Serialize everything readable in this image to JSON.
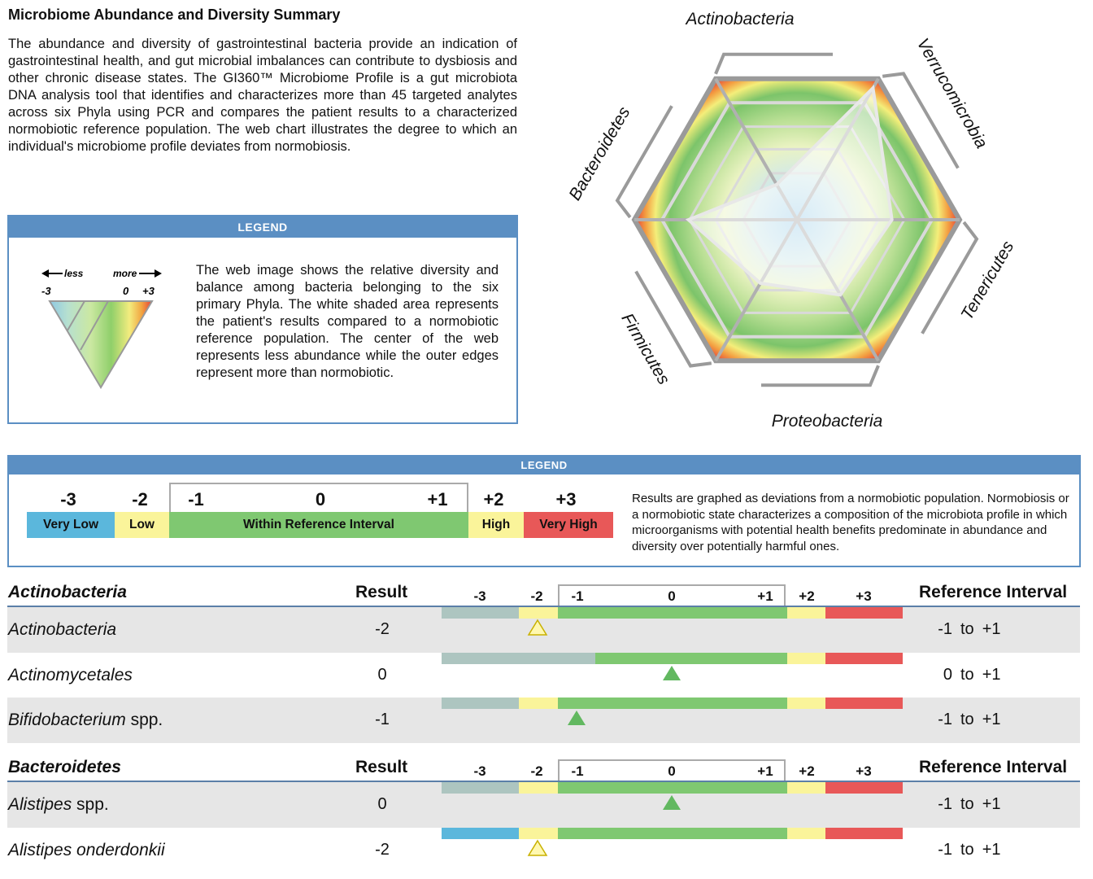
{
  "title": "Microbiome Abundance and Diversity Summary",
  "intro": "The abundance and diversity of gastrointestinal bacteria provide an indication of gastrointestinal health, and gut microbial imbalances can contribute to dysbiosis and other chronic disease states. The GI360™ Microbiome Profile is a gut microbiota DNA analysis tool that identifies and characterizes more than 45 targeted analytes across six Phyla using PCR and compares the patient results to a characterized normobiotic reference population. The web chart illustrates the degree to which an individual's microbiome profile deviates from normobiosis.",
  "legend1": {
    "header": "LEGEND",
    "less": "less",
    "more": "more",
    "min": "-3",
    "mid": "0",
    "max": "+3",
    "text": "The web image shows the relative diversity and balance among bacteria belonging to the six primary Phyla. The white shaded area represents the patient's results compared to a normobiotic reference population. The center of the web represents less abundance while the outer edges represent more than normobiotic."
  },
  "web": {
    "axes": [
      "Actinobacteria",
      "Verrucomicrobia",
      "Tenericutes",
      "Proteobacteria",
      "Firmicutes",
      "Bacteroidetes"
    ],
    "patient_values": [
      -1.5,
      2.6,
      0.5,
      0.2,
      -0.3,
      1.0
    ]
  },
  "legend2": {
    "header": "LEGEND",
    "numbers": [
      "-3",
      "-2",
      "-1",
      "0",
      "+1",
      "+2",
      "+3"
    ],
    "categories": [
      {
        "label": "Very Low",
        "color": "#5bb7dc"
      },
      {
        "label": "Low",
        "color": "#faf49a"
      },
      {
        "label": "Within Reference Interval",
        "color": "#7fc871"
      },
      {
        "label": "High",
        "color": "#faf49a"
      },
      {
        "label": "Very High",
        "color": "#e85858"
      }
    ],
    "text": "Results are graphed as deviations from a normobiotic population. Normobiosis or a normobiotic state characterizes a composition of the microbiota profile in which microorganisms with potential health benefits predominate in abundance and diversity over potentially harmful ones."
  },
  "columns": {
    "result": "Result",
    "reference": "Reference Interval",
    "ticks": [
      "-3",
      "-2",
      "-1",
      "0",
      "+1",
      "+2",
      "+3"
    ],
    "to": "to"
  },
  "sections": [
    {
      "title": "Actinobacteria",
      "rows": [
        {
          "name": "Actinobacteria",
          "suffix": "",
          "result": "-2",
          "value": -2,
          "ref_low": "-1",
          "ref_high": "+1",
          "very_low_color": "#adc5c0",
          "marker": "outline"
        },
        {
          "name": "Actinomycetales",
          "suffix": "",
          "result": "0",
          "value": 0,
          "ref_low": "0",
          "ref_high": "+1",
          "very_low_color": "#adc5c0",
          "marker": "filled"
        },
        {
          "name": "Bifidobacterium",
          "suffix": " spp.",
          "result": "-1",
          "value": -1,
          "ref_low": "-1",
          "ref_high": "+1",
          "very_low_color": "#adc5c0",
          "marker": "filled"
        }
      ]
    },
    {
      "title": "Bacteroidetes",
      "rows": [
        {
          "name": "Alistipes",
          "suffix": " spp.",
          "result": "0",
          "value": 0,
          "ref_low": "-1",
          "ref_high": "+1",
          "very_low_color": "#adc5c0",
          "marker": "filled"
        },
        {
          "name": "Alistipes onderdonkii",
          "suffix": "",
          "result": "-2",
          "value": -2,
          "ref_low": "-1",
          "ref_high": "+1",
          "very_low_color": "#5bb7dc",
          "marker": "outline"
        }
      ]
    }
  ]
}
